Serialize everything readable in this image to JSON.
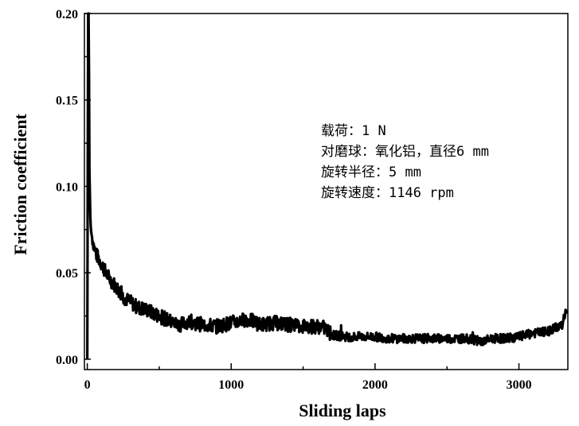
{
  "chart_data": {
    "type": "line",
    "xlabel": "Sliding laps",
    "ylabel": "Friction coefficient",
    "xlim": [
      -20,
      3340
    ],
    "ylim": [
      -0.006,
      0.2
    ],
    "x_ticks": [
      0,
      1000,
      2000,
      3000
    ],
    "x_tick_labels": [
      "0",
      "1000",
      "2000",
      "3000"
    ],
    "y_ticks": [
      0.0,
      0.05,
      0.1,
      0.15,
      0.2
    ],
    "y_tick_labels": [
      "0.00",
      "0.05",
      "0.10",
      "0.15",
      "0.20"
    ],
    "grid": false,
    "line_color": "#000000",
    "annotations": [
      "载荷：1 N",
      "对磨球：氧化铝，直径6 mm",
      "旋转半径：5 mm",
      "旋转速度：1146 rpm"
    ],
    "series": [
      {
        "x": [
          0,
          5,
          10,
          15,
          20,
          25,
          30,
          40,
          50,
          60,
          80,
          100,
          130,
          160,
          200,
          250,
          300,
          350,
          400,
          450,
          500,
          550,
          600,
          650,
          700,
          800,
          900,
          950,
          1000,
          1050,
          1100,
          1150,
          1200,
          1300,
          1400,
          1500,
          1600,
          1650,
          1700,
          1800,
          1900,
          2000,
          2100,
          2200,
          2300,
          2400,
          2500,
          2600,
          2700,
          2750,
          2800,
          2900,
          3000,
          3100,
          3200,
          3250,
          3300,
          3330
        ],
        "y": [
          0.0,
          0.2,
          0.2,
          0.11,
          0.085,
          0.075,
          0.072,
          0.068,
          0.064,
          0.061,
          0.058,
          0.055,
          0.05,
          0.046,
          0.042,
          0.036,
          0.033,
          0.03,
          0.029,
          0.027,
          0.025,
          0.023,
          0.021,
          0.02,
          0.022,
          0.02,
          0.019,
          0.02,
          0.021,
          0.022,
          0.023,
          0.022,
          0.02,
          0.021,
          0.02,
          0.019,
          0.019,
          0.018,
          0.014,
          0.013,
          0.013,
          0.013,
          0.012,
          0.012,
          0.012,
          0.012,
          0.012,
          0.012,
          0.011,
          0.01,
          0.012,
          0.012,
          0.013,
          0.015,
          0.016,
          0.018,
          0.02,
          0.028
        ]
      }
    ]
  }
}
